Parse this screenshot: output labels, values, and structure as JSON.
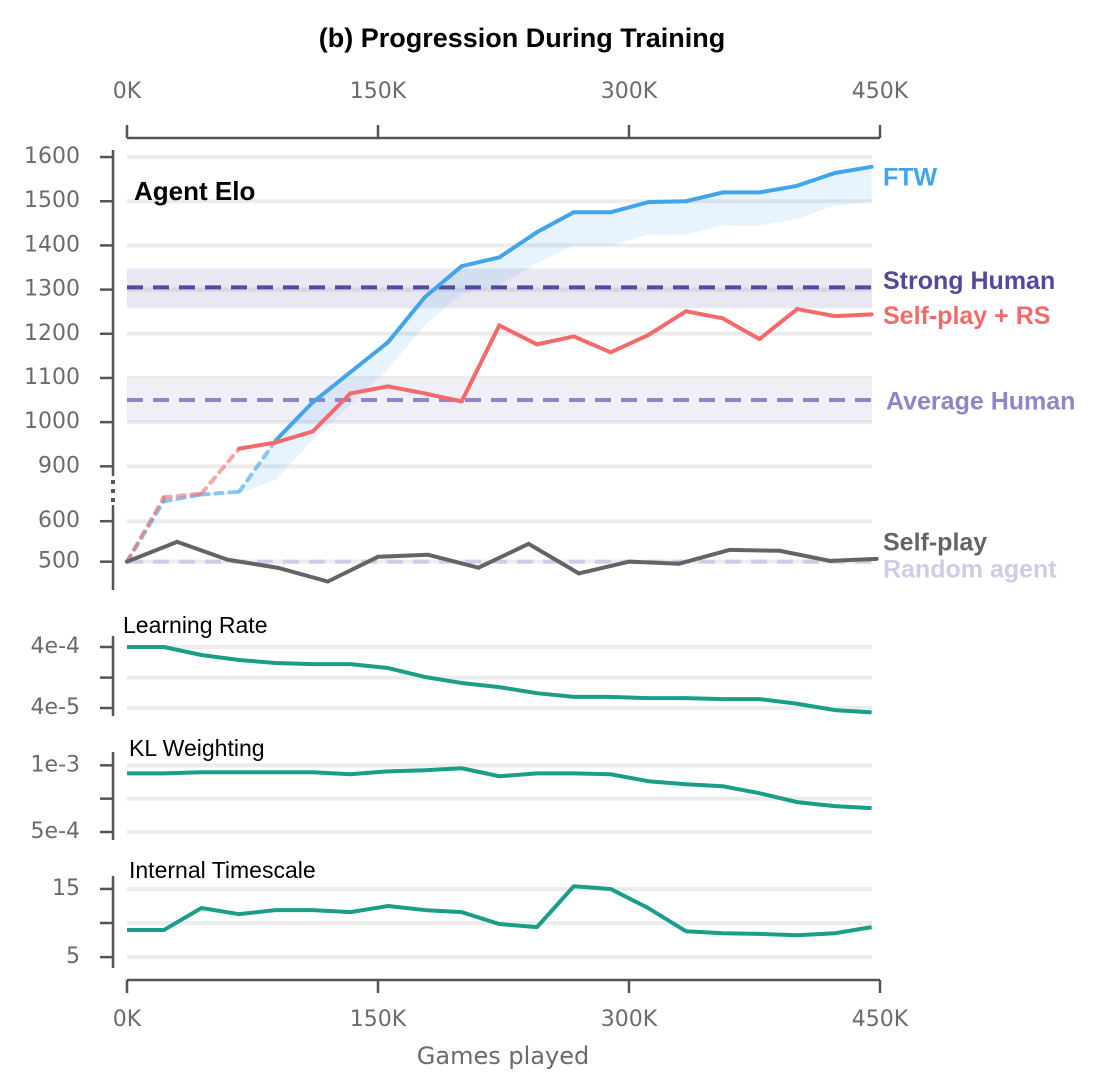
{
  "figure": {
    "title": "(b) Progression During Training",
    "xlabel": "Games played",
    "xlim": [
      0,
      450
    ],
    "xticks": [
      {
        "value": 0,
        "label": "0K"
      },
      {
        "value": 150,
        "label": "150K"
      },
      {
        "value": 300,
        "label": "300K"
      },
      {
        "value": 450,
        "label": "450K"
      }
    ]
  },
  "chart_data": [
    {
      "type": "line",
      "title": "Agent Elo",
      "ylim": [
        430,
        1616
      ],
      "ybreak": [
        640,
        860
      ],
      "yticks": [
        500,
        600,
        900,
        1000,
        1100,
        1200,
        1300,
        1400,
        1500,
        1600
      ],
      "grid": true,
      "x": [
        0,
        22,
        44.5,
        67,
        89,
        111,
        133.5,
        156,
        178,
        200,
        222.5,
        245,
        267,
        289,
        311.5,
        334,
        356,
        378,
        400.5,
        423,
        445
      ],
      "series": [
        {
          "name": "FTW",
          "color": "#42a5ec",
          "values": [
            500,
            680,
            750,
            780,
            959,
            1045,
            1113,
            1181,
            1283,
            1353,
            1373,
            1430,
            1475,
            1475,
            1498,
            1500,
            1520,
            1520,
            1535,
            1564,
            1578
          ],
          "band_low": [
            500,
            660,
            730,
            760,
            870,
            960,
            1040,
            1120,
            1220,
            1290,
            1310,
            1360,
            1400,
            1400,
            1425,
            1425,
            1445,
            1445,
            1460,
            1490,
            1500
          ]
        },
        {
          "name": "Self-play + RS",
          "color": "#f46a6a",
          "values": [
            500,
            720,
            760,
            940,
            954,
            979,
            1065,
            1081,
            1065,
            1047,
            1219,
            1176,
            1194,
            1158,
            1197,
            1251,
            1235,
            1188,
            1256,
            1240,
            1244
          ]
        },
        {
          "name": "Self-play",
          "color": "#646464",
          "x": [
            0,
            30,
            60,
            90,
            120,
            150,
            180,
            210,
            240,
            270,
            300,
            330,
            360,
            390,
            420,
            448
          ],
          "values": [
            500,
            549,
            505,
            485,
            451,
            512,
            517,
            485,
            544,
            471,
            500,
            495,
            529,
            527,
            502,
            507
          ]
        }
      ],
      "references": [
        {
          "name": "Strong Human",
          "value": 1305,
          "range": [
            1258,
            1348
          ],
          "color": "#54489c"
        },
        {
          "name": "Average Human",
          "value": 1050,
          "range": [
            1000,
            1095
          ],
          "color": "#8c87c9"
        },
        {
          "name": "Random agent",
          "value": 500,
          "color": "#cfcbe8"
        }
      ]
    },
    {
      "type": "line",
      "title": "Learning Rate",
      "log": true,
      "ylim": [
        2.96e-05,
        0.000606
      ],
      "grid": true,
      "yticks": [
        {
          "value": 0.0004,
          "label": "4e-4"
        },
        {
          "value": 0.000126,
          "label": null
        },
        {
          "value": 4e-05,
          "label": "4e-5"
        }
      ],
      "x": [
        0,
        22,
        44.5,
        67,
        89,
        111,
        133.5,
        156,
        178,
        200,
        222.5,
        245,
        267,
        289,
        311.5,
        334,
        356,
        378,
        400.5,
        423,
        445
      ],
      "series": [
        {
          "color": "#1a9e8a",
          "values": [
            0.0004,
            0.0004,
            0.000296,
            0.000245,
            0.000219,
            0.00021,
            0.00021,
            0.000181,
            0.000129,
            0.000103,
            8.8e-05,
            7e-05,
            6.1e-05,
            6.1e-05,
            5.8e-05,
            5.8e-05,
            5.6e-05,
            5.6e-05,
            4.7e-05,
            3.7e-05,
            3.4e-05
          ]
        }
      ]
    },
    {
      "type": "line",
      "title": "KL Weighting",
      "ylim": [
        0.00044,
        0.0011
      ],
      "grid": true,
      "yticks": [
        {
          "value": 0.001,
          "label": "1e-3"
        },
        {
          "value": 0.00075,
          "label": null
        },
        {
          "value": 0.0005,
          "label": "5e-4"
        }
      ],
      "x": [
        0,
        22,
        44.5,
        67,
        89,
        111,
        133.5,
        156,
        178,
        200,
        222.5,
        245,
        267,
        289,
        311.5,
        334,
        356,
        378,
        400.5,
        423,
        445
      ],
      "series": [
        {
          "color": "#1a9e8a",
          "values": [
            0.00094,
            0.00094,
            0.000948,
            0.000948,
            0.000948,
            0.000948,
            0.000933,
            0.000955,
            0.000963,
            0.000978,
            0.000918,
            0.00094,
            0.00094,
            0.000933,
            0.000881,
            0.000858,
            0.000843,
            0.000791,
            0.000724,
            0.000694,
            0.000679
          ]
        }
      ]
    },
    {
      "type": "line",
      "title": "Internal Timescale",
      "ylim": [
        3.4,
        16.9
      ],
      "grid": true,
      "yticks": [
        15,
        {
          "value": 10,
          "label": null
        },
        5
      ],
      "x": [
        0,
        22,
        44.5,
        67,
        89,
        111,
        133.5,
        156,
        178,
        200,
        222.5,
        245,
        267,
        289,
        311.5,
        334,
        356,
        378,
        400.5,
        423,
        445
      ],
      "series": [
        {
          "color": "#1a9e8a",
          "values": [
            8.97,
            8.97,
            12.2,
            11.3,
            11.9,
            11.9,
            11.6,
            12.5,
            11.9,
            11.6,
            9.85,
            9.4,
            15.4,
            15,
            12.2,
            8.8,
            8.5,
            8.4,
            8.2,
            8.5,
            9.4
          ]
        }
      ]
    }
  ]
}
